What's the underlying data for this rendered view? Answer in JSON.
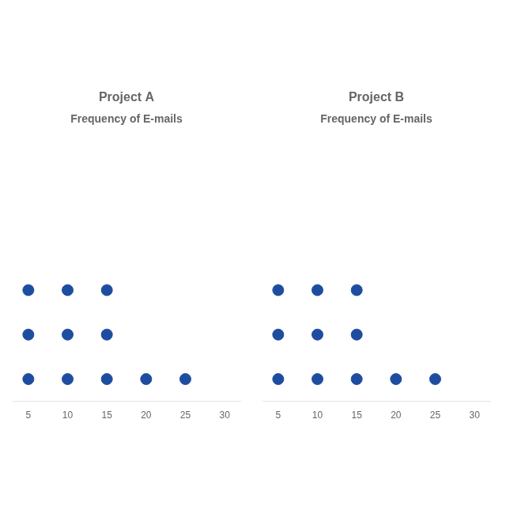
{
  "chart_data": [
    {
      "type": "dot",
      "title": "Project A",
      "subtitle": "Frequency of E-mails",
      "x": [
        5,
        10,
        15,
        20,
        25
      ],
      "values": [
        3,
        3,
        3,
        1,
        1
      ],
      "color": "#1e4da0",
      "xlim": [
        3,
        32
      ],
      "xticks": [
        5,
        10,
        15,
        20,
        25,
        30
      ],
      "grid": false,
      "tick_labels": "x"
    },
    {
      "type": "dot",
      "title": "Project B",
      "subtitle": "Frequency of E-mails",
      "x": [
        5,
        10,
        15,
        20,
        25
      ],
      "values": [
        3,
        3,
        3,
        1,
        1
      ],
      "color": "#1e4da0",
      "xlim": [
        3,
        32
      ],
      "xticks": [
        5,
        10,
        15,
        20,
        25,
        30
      ],
      "grid": false,
      "tick_labels": "x"
    }
  ]
}
